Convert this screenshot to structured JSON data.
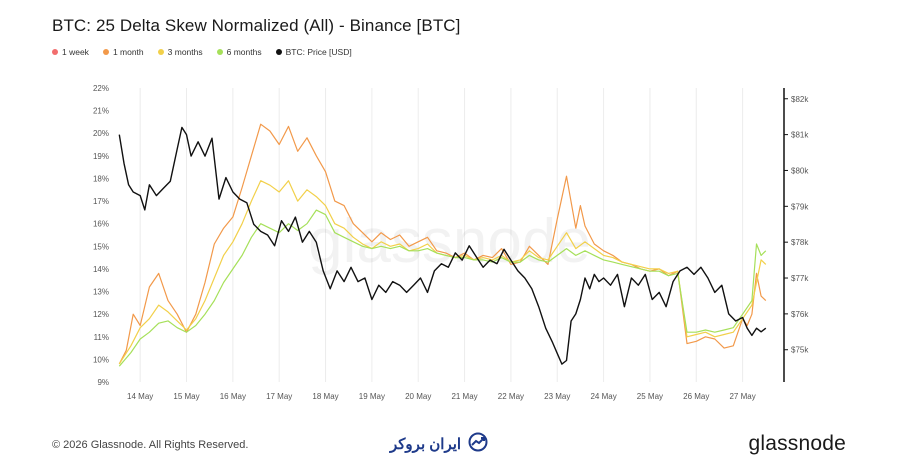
{
  "title": "BTC: 25 Delta Skew Normalized (All) - Binance [BTC]",
  "legend": [
    {
      "label": "1 week",
      "color": "#f26d6d"
    },
    {
      "label": "1 month",
      "color": "#f2994a"
    },
    {
      "label": "3 months",
      "color": "#f2d04a"
    },
    {
      "label": "6 months",
      "color": "#a6e05a"
    },
    {
      "label": "BTC: Price [USD]",
      "color": "#111111"
    }
  ],
  "footer": {
    "copyright": "© 2026 Glassnode. All Rights Reserved.",
    "brand": "ایران بروکر",
    "logo": "glassnode"
  },
  "watermark": "glassnode",
  "chart_data": {
    "type": "line",
    "x_tick_labels": [
      "14 May",
      "15 May",
      "16 May",
      "17 May",
      "18 May",
      "19 May",
      "20 May",
      "21 May",
      "22 May",
      "23 May",
      "24 May",
      "25 May",
      "26 May",
      "27 May"
    ],
    "xlim": [
      13.5,
      27.85
    ],
    "left_axis": {
      "ylim": [
        9,
        22
      ],
      "ticks": [
        "22%",
        "21%",
        "20%",
        "19%",
        "18%",
        "17%",
        "16%",
        "15%",
        "14%",
        "13%",
        "12%",
        "11%",
        "10%",
        "9%"
      ]
    },
    "right_axis": {
      "ylim": [
        74100,
        82300
      ],
      "ticks": [
        "$82k",
        "$81k",
        "$80k",
        "$79k",
        "$78k",
        "$77k",
        "$76k",
        "$75k"
      ]
    },
    "grid": "vertical",
    "series": [
      {
        "name": "1 month",
        "axis": "left",
        "color": "#f2994a",
        "x": [
          13.55,
          13.7,
          13.85,
          14.0,
          14.2,
          14.4,
          14.6,
          14.8,
          15.0,
          15.2,
          15.4,
          15.6,
          15.8,
          16.0,
          16.2,
          16.4,
          16.6,
          16.8,
          17.0,
          17.2,
          17.4,
          17.6,
          17.8,
          18.0,
          18.2,
          18.4,
          18.6,
          18.8,
          19.0,
          19.2,
          19.4,
          19.6,
          19.8,
          20.0,
          20.2,
          20.4,
          20.6,
          20.8,
          21.0,
          21.2,
          21.4,
          21.6,
          21.8,
          22.0,
          22.2,
          22.4,
          22.6,
          22.8,
          23.0,
          23.2,
          23.4,
          23.5,
          23.6,
          23.8,
          24.0,
          24.2,
          24.4,
          24.6,
          24.8,
          25.0,
          25.2,
          25.4,
          25.6,
          25.8,
          26.0,
          26.2,
          26.4,
          26.6,
          26.8,
          27.0,
          27.1,
          27.2,
          27.3,
          27.4,
          27.5
        ],
        "y": [
          9.8,
          10.4,
          12.0,
          11.5,
          13.2,
          13.8,
          12.6,
          12.0,
          11.2,
          12.0,
          13.4,
          15.1,
          15.8,
          16.3,
          17.6,
          19.0,
          20.4,
          20.1,
          19.5,
          20.3,
          19.2,
          19.8,
          19.0,
          18.3,
          17.0,
          16.8,
          16.0,
          15.6,
          15.2,
          15.6,
          15.3,
          15.5,
          15.0,
          15.2,
          15.4,
          14.8,
          14.7,
          14.5,
          14.7,
          14.4,
          14.6,
          14.5,
          14.9,
          14.2,
          14.3,
          15.0,
          14.6,
          14.2,
          16.2,
          18.1,
          15.8,
          16.8,
          15.9,
          15.1,
          14.8,
          14.6,
          14.3,
          14.2,
          14.0,
          13.9,
          14.0,
          13.7,
          13.9,
          10.7,
          10.8,
          11.0,
          10.9,
          10.5,
          10.6,
          11.8,
          11.5,
          12.0,
          13.8,
          12.8,
          12.6
        ]
      },
      {
        "name": "3 months",
        "axis": "left",
        "color": "#f2d04a",
        "x": [
          13.55,
          13.8,
          14.0,
          14.2,
          14.4,
          14.6,
          14.8,
          15.0,
          15.2,
          15.4,
          15.6,
          15.8,
          16.0,
          16.2,
          16.4,
          16.6,
          16.8,
          17.0,
          17.2,
          17.4,
          17.6,
          17.8,
          18.0,
          18.2,
          18.4,
          18.6,
          18.8,
          19.0,
          19.2,
          19.4,
          19.6,
          19.8,
          20.0,
          20.2,
          20.4,
          20.6,
          20.8,
          21.0,
          21.2,
          21.4,
          21.6,
          21.8,
          22.0,
          22.2,
          22.4,
          22.6,
          22.8,
          23.0,
          23.2,
          23.4,
          23.6,
          23.8,
          24.0,
          24.2,
          24.4,
          24.6,
          24.8,
          25.0,
          25.2,
          25.4,
          25.6,
          25.8,
          26.0,
          26.2,
          26.4,
          26.6,
          26.8,
          27.0,
          27.2,
          27.4,
          27.5
        ],
        "y": [
          9.8,
          10.6,
          11.4,
          11.8,
          12.4,
          12.1,
          11.7,
          11.3,
          11.8,
          12.6,
          13.6,
          14.6,
          15.2,
          16.0,
          17.0,
          17.9,
          17.7,
          17.4,
          17.9,
          17.0,
          17.5,
          17.2,
          16.8,
          16.0,
          15.8,
          15.4,
          15.1,
          14.9,
          15.2,
          15.0,
          15.1,
          14.8,
          14.9,
          15.1,
          14.7,
          14.6,
          14.5,
          14.6,
          14.4,
          14.5,
          14.4,
          14.6,
          14.3,
          14.4,
          14.8,
          14.5,
          14.4,
          15.0,
          15.6,
          14.9,
          15.2,
          14.9,
          14.6,
          14.5,
          14.3,
          14.2,
          14.1,
          14.0,
          14.0,
          13.8,
          13.9,
          11.0,
          11.1,
          11.2,
          11.0,
          11.1,
          11.2,
          11.8,
          12.4,
          14.4,
          14.2
        ]
      },
      {
        "name": "6 months",
        "axis": "left",
        "color": "#a6e05a",
        "x": [
          13.55,
          13.8,
          14.0,
          14.2,
          14.4,
          14.6,
          14.8,
          15.0,
          15.2,
          15.4,
          15.6,
          15.8,
          16.0,
          16.2,
          16.4,
          16.6,
          16.8,
          17.0,
          17.2,
          17.4,
          17.6,
          17.8,
          18.0,
          18.2,
          18.4,
          18.6,
          18.8,
          19.0,
          19.2,
          19.4,
          19.6,
          19.8,
          20.0,
          20.2,
          20.4,
          20.6,
          20.8,
          21.0,
          21.2,
          21.4,
          21.6,
          21.8,
          22.0,
          22.2,
          22.4,
          22.6,
          22.8,
          23.0,
          23.2,
          23.4,
          23.6,
          23.8,
          24.0,
          24.2,
          24.4,
          24.6,
          24.8,
          25.0,
          25.2,
          25.4,
          25.6,
          25.8,
          26.0,
          26.2,
          26.4,
          26.6,
          26.8,
          27.0,
          27.2,
          27.3,
          27.4,
          27.5
        ],
        "y": [
          9.7,
          10.3,
          10.9,
          11.2,
          11.6,
          11.7,
          11.4,
          11.2,
          11.5,
          12.0,
          12.6,
          13.4,
          14.0,
          14.6,
          15.4,
          16.0,
          15.8,
          15.6,
          16.0,
          15.7,
          16.0,
          16.6,
          16.4,
          15.6,
          15.4,
          15.2,
          15.0,
          14.9,
          15.0,
          14.9,
          15.0,
          14.8,
          14.8,
          14.9,
          14.7,
          14.6,
          14.5,
          14.5,
          14.4,
          14.4,
          14.3,
          14.5,
          14.3,
          14.3,
          14.6,
          14.4,
          14.3,
          14.6,
          14.9,
          14.6,
          14.8,
          14.6,
          14.4,
          14.3,
          14.2,
          14.1,
          14.0,
          13.9,
          13.9,
          13.7,
          13.8,
          11.2,
          11.2,
          11.3,
          11.2,
          11.3,
          11.4,
          12.0,
          12.6,
          15.1,
          14.6,
          14.8
        ]
      },
      {
        "name": "BTC: Price [USD]",
        "axis": "right",
        "color": "#111111",
        "x": [
          13.55,
          13.65,
          13.75,
          13.85,
          14.0,
          14.1,
          14.2,
          14.35,
          14.5,
          14.65,
          14.8,
          14.9,
          15.0,
          15.1,
          15.25,
          15.4,
          15.55,
          15.7,
          15.85,
          16.0,
          16.15,
          16.3,
          16.45,
          16.6,
          16.75,
          16.9,
          17.05,
          17.2,
          17.35,
          17.5,
          17.65,
          17.8,
          17.95,
          18.1,
          18.25,
          18.4,
          18.55,
          18.7,
          18.85,
          19.0,
          19.15,
          19.3,
          19.45,
          19.6,
          19.75,
          19.9,
          20.05,
          20.2,
          20.35,
          20.5,
          20.65,
          20.8,
          20.95,
          21.1,
          21.25,
          21.4,
          21.55,
          21.7,
          21.85,
          22.0,
          22.15,
          22.3,
          22.45,
          22.6,
          22.75,
          22.9,
          23.0,
          23.1,
          23.2,
          23.3,
          23.4,
          23.5,
          23.6,
          23.7,
          23.8,
          23.9,
          24.0,
          24.15,
          24.3,
          24.45,
          24.6,
          24.75,
          24.9,
          25.05,
          25.2,
          25.35,
          25.5,
          25.65,
          25.8,
          25.95,
          26.1,
          26.25,
          26.4,
          26.55,
          26.7,
          26.85,
          27.0,
          27.1,
          27.2,
          27.3,
          27.4,
          27.5
        ],
        "y": [
          81.0,
          80.2,
          79.6,
          79.4,
          79.3,
          78.9,
          79.6,
          79.3,
          79.5,
          79.7,
          80.6,
          81.2,
          81.0,
          80.4,
          80.8,
          80.4,
          80.9,
          79.2,
          79.8,
          79.4,
          79.2,
          79.1,
          78.5,
          78.3,
          78.2,
          77.9,
          78.6,
          78.3,
          78.7,
          78.0,
          78.3,
          78.0,
          77.2,
          76.7,
          77.2,
          76.9,
          77.3,
          76.9,
          77.0,
          76.4,
          76.8,
          76.6,
          76.9,
          76.8,
          76.6,
          76.8,
          77.0,
          76.6,
          77.2,
          77.4,
          77.3,
          77.7,
          77.5,
          77.9,
          77.6,
          77.3,
          77.5,
          77.4,
          77.8,
          77.5,
          77.2,
          77.0,
          76.7,
          76.2,
          75.6,
          75.2,
          74.9,
          74.6,
          74.7,
          75.8,
          76.0,
          76.4,
          77.0,
          76.7,
          77.1,
          76.9,
          77.0,
          76.8,
          77.1,
          76.2,
          77.0,
          76.8,
          77.1,
          76.4,
          76.6,
          76.2,
          76.9,
          77.2,
          77.3,
          77.1,
          77.3,
          77.0,
          76.6,
          76.8,
          76.0,
          75.8,
          75.9,
          75.6,
          75.4,
          75.6,
          75.5,
          75.6
        ]
      }
    ]
  }
}
